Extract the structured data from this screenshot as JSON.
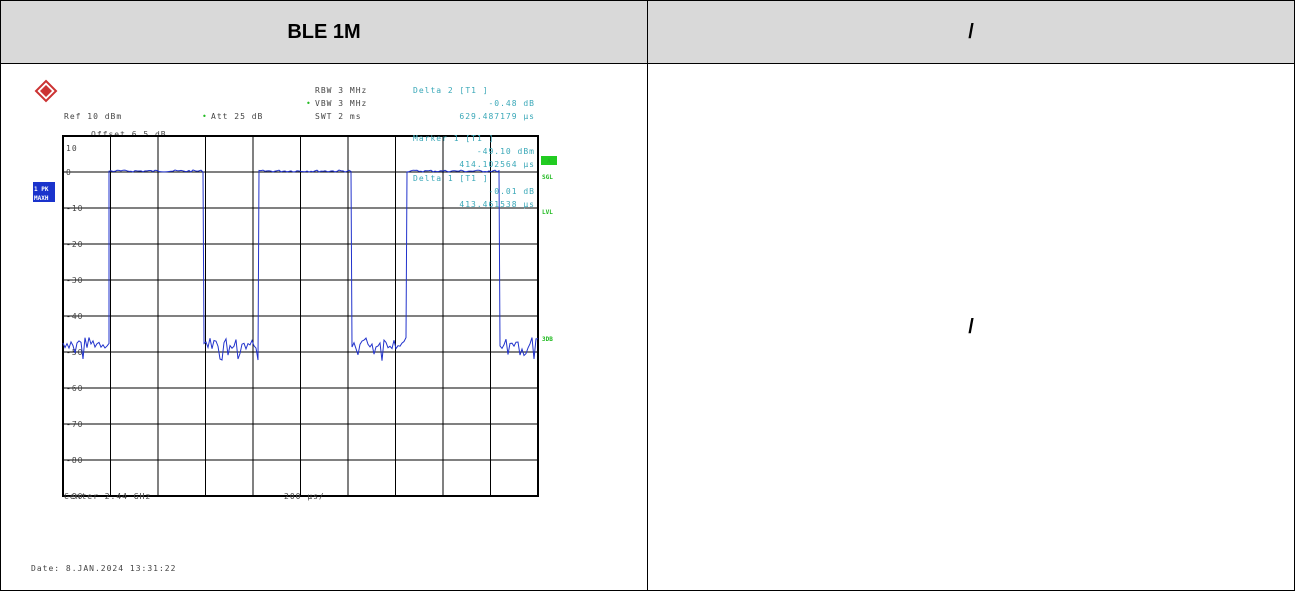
{
  "header": {
    "left": "BLE 1M",
    "right": "/"
  },
  "body": {
    "right": "/",
    "screenshot": {
      "rbw": "RBW 3 MHz",
      "vbw": "VBW 3 MHz",
      "swt": "SWT 2 ms",
      "ref": "Ref 10 dBm",
      "att": "Att 25 dB",
      "offset": "Offset 6.5 dB",
      "markers": [
        {
          "label": "Delta 2 [T1 ]",
          "value": "-0.48 dB",
          "time": "629.487179 µs"
        },
        {
          "label": "Marker 1 [T1 ]",
          "value": "-49.10 dBm",
          "time": "414.102564 µs"
        },
        {
          "label": "Delta 1 [T1 ]",
          "value": "-0.01 dB",
          "time": "413.461538 µs"
        }
      ],
      "trace_label": [
        "1 PK",
        "MAXH"
      ],
      "side_labels": [
        "A",
        "SGL",
        "LVL",
        "3DB"
      ],
      "y_labels": [
        "10",
        "0",
        "-10",
        "-20",
        "-30",
        "-40",
        "-50",
        "-60",
        "-70",
        "-80",
        "-90"
      ],
      "center": "Center 2.44 GHz",
      "span": "200 µs/",
      "date": "Date: 8.JAN.2024 13:31:22"
    }
  }
}
